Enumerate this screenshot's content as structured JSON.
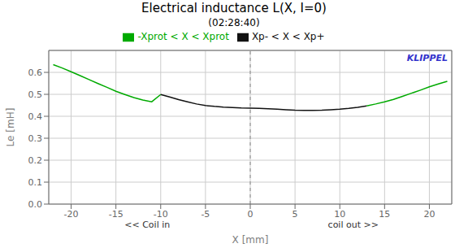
{
  "chart_data": {
    "type": "line",
    "title": "Electrical inductance L(X, I=0)",
    "subtitle": "(02:28:40)",
    "xlabel": "X [mm]",
    "ylabel": "Le [mH]",
    "x": [
      -22.0,
      -21.0,
      -20.0,
      -19.0,
      -18.0,
      -17.0,
      -16.0,
      -15.0,
      -14.0,
      -13.0,
      -12.0,
      -11.0,
      -10.0,
      -9.0,
      -8.0,
      -7.0,
      -6.0,
      -5.0,
      -4.0,
      -3.0,
      -2.0,
      -1.0,
      0.0,
      1.0,
      2.0,
      3.0,
      4.0,
      5.0,
      6.0,
      7.0,
      8.0,
      9.0,
      10.0,
      11.0,
      12.0,
      13.0,
      14.0,
      15.0,
      16.0,
      17.0,
      18.0,
      19.0,
      20.0,
      21.0,
      22.0
    ],
    "series": [
      {
        "name": "-Xprot < X < Xprot",
        "color": "#00aa00",
        "values": [
          0.635,
          0.62,
          0.603,
          0.585,
          0.567,
          0.549,
          0.532,
          0.514,
          0.499,
          0.485,
          0.474,
          0.466,
          0.499,
          null,
          null,
          null,
          null,
          null,
          null,
          null,
          null,
          null,
          null,
          null,
          null,
          null,
          null,
          null,
          null,
          null,
          null,
          null,
          null,
          null,
          null,
          0.447,
          0.456,
          0.466,
          0.477,
          0.491,
          0.505,
          0.519,
          0.534,
          0.547,
          0.559
        ]
      },
      {
        "name": "Xp- < X < Xp+",
        "color": "#111111",
        "values": [
          null,
          null,
          null,
          null,
          null,
          null,
          null,
          null,
          null,
          null,
          null,
          null,
          0.499,
          0.488,
          0.476,
          0.466,
          0.456,
          0.449,
          0.445,
          0.442,
          0.44,
          0.438,
          0.437,
          0.436,
          0.434,
          0.432,
          0.43,
          0.428,
          0.427,
          0.427,
          0.428,
          0.43,
          0.432,
          0.436,
          0.441,
          0.447,
          null,
          null,
          null,
          null,
          null,
          null,
          null,
          null,
          null
        ]
      }
    ],
    "xlim": [
      -22.5,
      22.5
    ],
    "ylim": [
      0.0,
      0.7
    ],
    "xticks": [
      -20,
      -15,
      -10,
      -5,
      0,
      5,
      10,
      15,
      20
    ],
    "yticks": [
      {
        "value": 0.0,
        "label": "0.0"
      },
      {
        "value": 0.1,
        "label": "0.1"
      },
      {
        "value": 0.2,
        "label": "0.2"
      },
      {
        "value": 0.3,
        "label": "0.3"
      },
      {
        "value": 0.4,
        "label": "0.4"
      },
      {
        "value": 0.5,
        "label": "0.5"
      },
      {
        "value": 0.6,
        "label": "0.6"
      }
    ],
    "grid": true,
    "legend": "top",
    "annotations": [
      {
        "text": "<< Coil in",
        "x": -11.5
      },
      {
        "text": "coil out >>",
        "x": 11.5
      },
      {
        "text": "KLIPPEL",
        "color": "#3333cc"
      }
    ],
    "vlines": [
      {
        "x": 0,
        "color": "#888888",
        "line_style": "dashed"
      }
    ]
  }
}
